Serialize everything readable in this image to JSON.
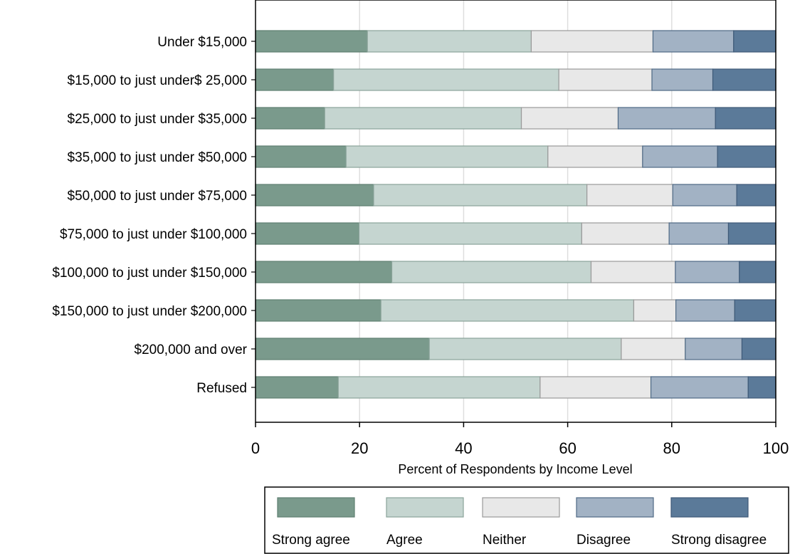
{
  "chart_data": {
    "type": "bar",
    "orientation": "horizontal",
    "stacked": true,
    "title": "",
    "xlabel": "Percent of Respondents by Income Level",
    "ylabel": "",
    "xlim": [
      0,
      100
    ],
    "xticks": [
      "0",
      "20",
      "40",
      "60",
      "80",
      "100"
    ],
    "grid": true,
    "legend_position": "bottom",
    "categories": [
      "Under $15,000",
      "$15,000 to just under$ 25,000",
      "$25,000 to just under $35,000",
      "$35,000 to just under $50,000",
      "$50,000 to just under $75,000",
      "$75,000 to just under $100,000",
      "$100,000 to just under $150,000",
      "$150,000 to just under $200,000",
      "$200,000 and over",
      "Refused"
    ],
    "series": [
      {
        "name": "Strong agree",
        "color": "#7a9a8c",
        "stroke": "#5f8072",
        "values": [
          21.5,
          15.0,
          13.3,
          17.4,
          22.7,
          19.9,
          26.2,
          24.1,
          33.4,
          15.9
        ]
      },
      {
        "name": "Agree",
        "color": "#c5d5d0",
        "stroke": "#8aa39a",
        "values": [
          31.5,
          43.3,
          37.8,
          38.8,
          41.0,
          42.8,
          38.3,
          48.6,
          36.9,
          38.8
        ]
      },
      {
        "name": "Neither",
        "color": "#e8e8e8",
        "stroke": "#9a9a9a",
        "values": [
          23.4,
          17.9,
          18.6,
          18.2,
          16.5,
          16.8,
          16.2,
          8.1,
          12.3,
          21.3
        ]
      },
      {
        "name": "Disagree",
        "color": "#a2b2c4",
        "stroke": "#4f6a86",
        "values": [
          15.5,
          11.7,
          18.7,
          14.4,
          12.3,
          11.4,
          12.3,
          11.3,
          10.9,
          18.7
        ]
      },
      {
        "name": "Strong disagree",
        "color": "#5b7a99",
        "stroke": "#3f5a78",
        "values": [
          8.1,
          12.1,
          11.6,
          11.2,
          7.5,
          9.1,
          7.0,
          7.9,
          6.5,
          5.3
        ]
      }
    ]
  }
}
